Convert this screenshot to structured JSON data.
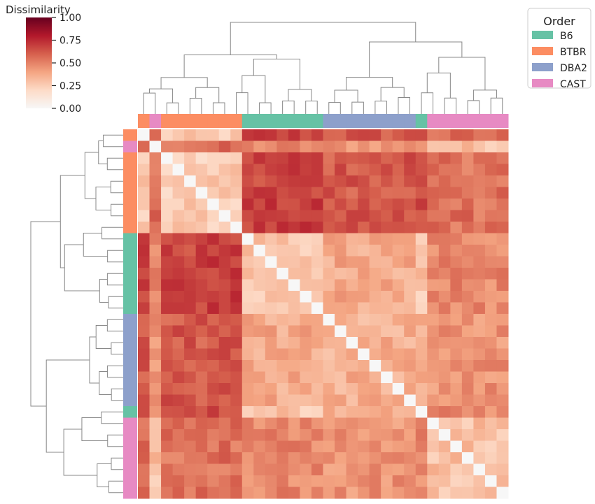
{
  "chart_data": {
    "type": "heatmap",
    "colorbar": {
      "title": "Dissimilarity",
      "range": [
        0,
        1
      ],
      "ticks": [
        "0.00",
        "0.25",
        "0.50",
        "0.75",
        "1.00"
      ],
      "colormap": [
        "#f7f7f7",
        "#fddbc7",
        "#f4a582",
        "#d6604d",
        "#b2182b",
        "#67001f"
      ]
    },
    "legend": {
      "title": "Order",
      "placement": "top-right",
      "entries": [
        {
          "label": "B6",
          "color": "#66c2a5"
        },
        {
          "label": "BTBR",
          "color": "#fc8d62"
        },
        {
          "label": "DBA2",
          "color": "#8da0cb"
        },
        {
          "label": "CAST",
          "color": "#e78ac3"
        }
      ]
    },
    "row_groups": [
      "BTBR",
      "CAST",
      "BTBR",
      "BTBR",
      "BTBR",
      "BTBR",
      "BTBR",
      "BTBR",
      "BTBR",
      "B6",
      "B6",
      "B6",
      "B6",
      "B6",
      "B6",
      "B6",
      "DBA2",
      "DBA2",
      "DBA2",
      "DBA2",
      "DBA2",
      "DBA2",
      "DBA2",
      "DBA2",
      "B6",
      "CAST",
      "CAST",
      "CAST",
      "CAST",
      "CAST",
      "CAST",
      "CAST"
    ],
    "col_groups": [
      "BTBR",
      "CAST",
      "BTBR",
      "BTBR",
      "BTBR",
      "BTBR",
      "BTBR",
      "BTBR",
      "BTBR",
      "B6",
      "B6",
      "B6",
      "B6",
      "B6",
      "B6",
      "B6",
      "DBA2",
      "DBA2",
      "DBA2",
      "DBA2",
      "DBA2",
      "DBA2",
      "DBA2",
      "DBA2",
      "B6",
      "CAST",
      "CAST",
      "CAST",
      "CAST",
      "CAST",
      "CAST",
      "CAST"
    ],
    "group_dissimilarity": [
      {
        "groups": [
          "BTBR",
          "BTBR"
        ],
        "value": 0.25
      },
      {
        "groups": [
          "BTBR",
          "CAST"
        ],
        "value": 0.55
      },
      {
        "groups": [
          "BTBR",
          "B6"
        ],
        "value": 0.68
      },
      {
        "groups": [
          "BTBR",
          "DBA2"
        ],
        "value": 0.62
      },
      {
        "groups": [
          "B6",
          "B6"
        ],
        "value": 0.28
      },
      {
        "groups": [
          "B6",
          "DBA2"
        ],
        "value": 0.38
      },
      {
        "groups": [
          "B6",
          "CAST"
        ],
        "value": 0.48
      },
      {
        "groups": [
          "DBA2",
          "DBA2"
        ],
        "value": 0.36
      },
      {
        "groups": [
          "DBA2",
          "CAST"
        ],
        "value": 0.45
      },
      {
        "groups": [
          "CAST",
          "CAST"
        ],
        "value": 0.3
      }
    ],
    "dendrogram": "ward-linkage",
    "diagonal": 0.0
  }
}
